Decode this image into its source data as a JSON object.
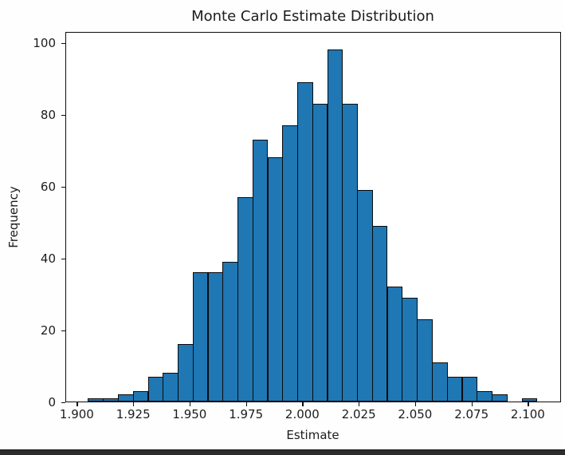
{
  "figure": {
    "title": "Monte Carlo Estimate Distribution"
  },
  "chart_data": {
    "type": "bar",
    "subtype": "histogram",
    "title": "Monte Carlo Estimate Distribution",
    "xlabel": "Estimate",
    "ylabel": "Frequency",
    "bin_start": 1.9046,
    "bin_width": 0.00663,
    "counts": [
      1,
      1,
      2,
      3,
      7,
      8,
      16,
      36,
      36,
      39,
      57,
      73,
      68,
      77,
      89,
      83,
      98,
      83,
      59,
      49,
      32,
      29,
      23,
      11,
      7,
      7,
      3,
      2,
      0,
      1
    ],
    "total_samples": 1000,
    "xlim": [
      1.8949,
      2.1147
    ],
    "ylim": [
      0,
      103.1
    ],
    "x_ticks": [
      1.9,
      1.925,
      1.95,
      1.975,
      2.0,
      2.025,
      2.05,
      2.075,
      2.1
    ],
    "x_tick_labels": [
      "1.900",
      "1.925",
      "1.950",
      "1.975",
      "2.000",
      "2.025",
      "2.050",
      "2.075",
      "2.100"
    ],
    "y_ticks": [
      0,
      20,
      40,
      60,
      80,
      100
    ],
    "y_tick_labels": [
      "0",
      "20",
      "40",
      "60",
      "80",
      "100"
    ],
    "grid": false,
    "legend": null,
    "bar_color": "#1f77b4",
    "bar_edge_color": "#0b0b0b",
    "spine_color": "#0d0d0d",
    "text_color": "#1c1c1c",
    "background_color": "#ffffff"
  },
  "colors": {
    "bar_fill": "#1f77b4",
    "bar_edge": "#0b0b0b",
    "text": "#1c1c1c",
    "bottom_strip": "#2c2c2c"
  }
}
